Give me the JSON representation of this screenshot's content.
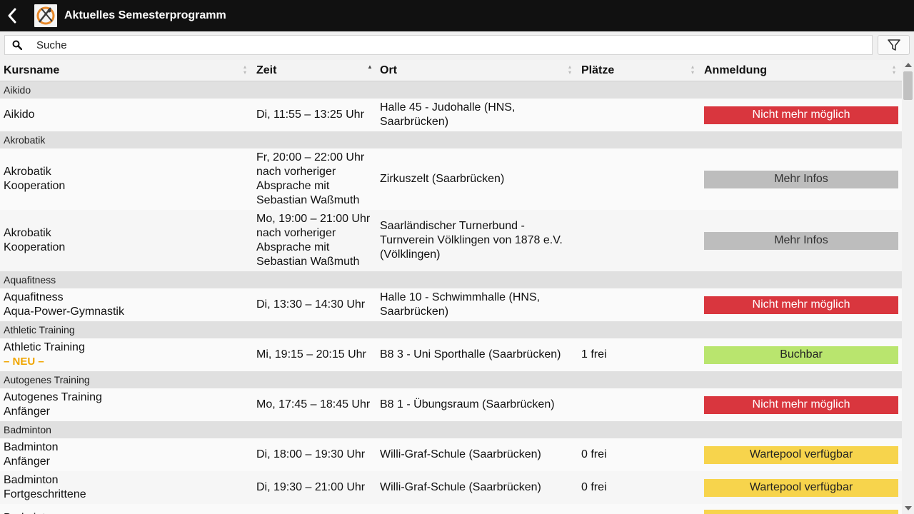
{
  "app": {
    "title": "Aktuelles Semesterprogramm"
  },
  "search": {
    "placeholder": "Suche"
  },
  "icons": {
    "back": "chevron-left-icon",
    "search": "search-icon",
    "filter": "filter-icon",
    "logo": "university-sport-logo"
  },
  "table": {
    "headers": {
      "name": "Kursname",
      "time": "Zeit",
      "place": "Ort",
      "seats": "Plätze",
      "registration": "Anmeldung"
    },
    "sorted_by": "time"
  },
  "groups": [
    {
      "title": "Aikido",
      "rows": [
        {
          "name": [
            "Aikido"
          ],
          "time": [
            "Di, 11:55 – 13:25 Uhr"
          ],
          "place": [
            "Halle 45 - Judohalle (HNS,",
            "Saarbrücken)"
          ],
          "seats": "",
          "status": "Nicht mehr möglich",
          "status_type": "red"
        }
      ]
    },
    {
      "title": "Akrobatik",
      "rows": [
        {
          "name": [
            "Akrobatik",
            "Kooperation"
          ],
          "time": [
            "Fr, 20:00 – 22:00 Uhr",
            "nach vorheriger",
            "Absprache mit",
            "Sebastian Waßmuth"
          ],
          "place": [
            "Zirkuszelt (Saarbrücken)"
          ],
          "seats": "",
          "status": "Mehr Infos",
          "status_type": "grey"
        },
        {
          "name": [
            "Akrobatik",
            "Kooperation"
          ],
          "time": [
            "Mo, 19:00 – 21:00 Uhr",
            "nach vorheriger",
            "Absprache mit",
            "Sebastian Waßmuth"
          ],
          "place": [
            "Saarländischer Turnerbund -",
            "Turnverein Völklingen von 1878 e.V.",
            "(Völklingen)"
          ],
          "seats": "",
          "status": "Mehr Infos",
          "status_type": "grey"
        }
      ]
    },
    {
      "title": "Aquafitness",
      "rows": [
        {
          "name": [
            "Aquafitness",
            "Aqua-Power-Gymnastik"
          ],
          "time": [
            "Di, 13:30 – 14:30 Uhr"
          ],
          "place": [
            "Halle 10 - Schwimmhalle (HNS,",
            "Saarbrücken)"
          ],
          "seats": "",
          "status": "Nicht mehr möglich",
          "status_type": "red"
        }
      ]
    },
    {
      "title": "Athletic Training",
      "rows": [
        {
          "name": [
            "Athletic Training"
          ],
          "badge": "– NEU –",
          "time": [
            "Mi, 19:15 – 20:15 Uhr"
          ],
          "place": [
            "B8 3 - Uni Sporthalle (Saarbrücken)"
          ],
          "seats": "1 frei",
          "status": "Buchbar",
          "status_type": "green"
        }
      ]
    },
    {
      "title": "Autogenes Training",
      "rows": [
        {
          "name": [
            "Autogenes Training",
            "Anfänger"
          ],
          "time": [
            "Mo, 17:45 – 18:45 Uhr"
          ],
          "place": [
            "B8 1 - Übungsraum (Saarbrücken)"
          ],
          "seats": "",
          "status": "Nicht mehr möglich",
          "status_type": "red"
        }
      ]
    },
    {
      "title": "Badminton",
      "rows": [
        {
          "name": [
            "Badminton",
            "Anfänger"
          ],
          "time": [
            "Di, 18:00 – 19:30 Uhr"
          ],
          "place": [
            "Willi-Graf-Schule (Saarbrücken)"
          ],
          "seats": "0 frei",
          "status": "Wartepool verfügbar",
          "status_type": "yellow"
        },
        {
          "name": [
            "Badminton",
            "Fortgeschrittene"
          ],
          "time": [
            "Di, 19:30 – 21:00 Uhr"
          ],
          "place": [
            "Willi-Graf-Schule (Saarbrücken)"
          ],
          "seats": "0 frei",
          "status": "Wartepool verfügbar",
          "status_type": "yellow"
        },
        {
          "name": [
            "Badminton"
          ],
          "time": [],
          "place": [],
          "seats": "",
          "status": "",
          "status_type": "yellow"
        }
      ]
    }
  ]
}
